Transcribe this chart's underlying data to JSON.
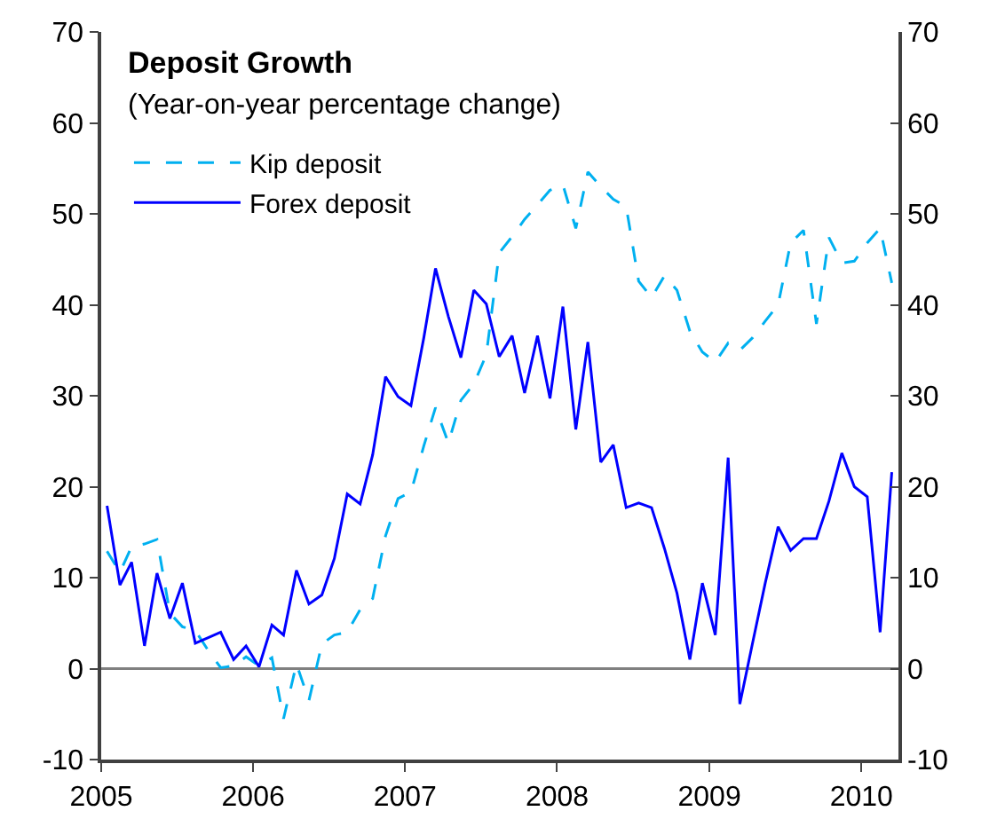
{
  "chart_data": {
    "type": "line",
    "title": "Deposit Growth",
    "subtitle": "(Year-on-year percentage change)",
    "x": [
      "2005-01-15",
      "2005-02-15",
      "2005-03-15",
      "2005-04-15",
      "2005-05-15",
      "2005-06-15",
      "2005-07-15",
      "2005-08-15",
      "2005-09-15",
      "2005-10-15",
      "2005-11-15",
      "2005-12-15",
      "2006-01-15",
      "2006-02-15",
      "2006-03-15",
      "2006-04-15",
      "2006-05-15",
      "2006-06-15",
      "2006-07-15",
      "2006-08-15",
      "2006-09-15",
      "2006-10-15",
      "2006-11-15",
      "2006-12-15",
      "2007-01-15",
      "2007-02-15",
      "2007-03-15",
      "2007-04-15",
      "2007-05-15",
      "2007-06-15",
      "2007-07-15",
      "2007-08-15",
      "2007-09-15",
      "2007-10-15",
      "2007-11-15",
      "2007-12-15",
      "2008-01-15",
      "2008-02-15",
      "2008-03-15",
      "2008-04-15",
      "2008-05-15",
      "2008-06-15",
      "2008-07-15",
      "2008-08-15",
      "2008-09-15",
      "2008-10-15",
      "2008-11-15",
      "2008-12-15",
      "2009-01-15",
      "2009-02-15",
      "2009-03-15",
      "2009-04-15",
      "2009-05-15",
      "2009-06-15",
      "2009-07-15",
      "2009-08-15",
      "2009-09-15",
      "2009-10-15",
      "2009-11-15",
      "2009-12-15",
      "2010-01-15",
      "2010-02-15",
      "2010-03-15"
    ],
    "series": [
      {
        "name": "Kip deposit",
        "color": "#00b0f0",
        "line_style": "dashed",
        "values": [
          12.9,
          10.6,
          13.4,
          13.7,
          14.2,
          6.1,
          4.6,
          4.2,
          2.0,
          0.1,
          0.3,
          1.3,
          0.3,
          1.2,
          -5.5,
          0.5,
          -3.5,
          2.7,
          3.7,
          4.0,
          6.5,
          7.7,
          14.6,
          18.7,
          19.4,
          24.5,
          28.7,
          24.8,
          29.5,
          31.3,
          34.5,
          45.7,
          47.5,
          49.4,
          51.0,
          52.6,
          53.2,
          48.4,
          54.6,
          53.0,
          51.6,
          50.8,
          42.6,
          40.8,
          43.2,
          41.6,
          37.1,
          34.8,
          33.7,
          35.8,
          35.0,
          36.4,
          38.2,
          40.0,
          46.8,
          48.2,
          37.9,
          47.4,
          44.6,
          44.8,
          46.8,
          48.4,
          42.4
        ]
      },
      {
        "name": "Forex deposit",
        "color": "#0000ff",
        "line_style": "solid",
        "values": [
          17.9,
          9.2,
          11.7,
          2.5,
          10.5,
          5.5,
          9.4,
          2.8,
          3.4,
          4.0,
          1.0,
          2.5,
          0.2,
          4.8,
          3.7,
          10.8,
          7.1,
          8.1,
          12.1,
          19.2,
          18.1,
          23.5,
          32.1,
          29.9,
          28.9,
          36.4,
          44.0,
          38.7,
          34.2,
          41.6,
          40.1,
          34.3,
          36.6,
          30.3,
          36.6,
          29.7,
          39.8,
          26.3,
          35.9,
          22.7,
          24.6,
          17.7,
          18.2,
          17.7,
          13.2,
          8.3,
          1.0,
          9.4,
          3.7,
          23.2,
          -3.9,
          2.9,
          9.4,
          15.6,
          13.0,
          14.3,
          14.3,
          18.4,
          23.7,
          20.0,
          18.9,
          4.0,
          21.6
        ]
      }
    ],
    "xlim": [
      "2005-01-01",
      "2010-03-31"
    ],
    "xticks": [
      {
        "value": "2005-01-01",
        "label": "2005"
      },
      {
        "value": "2006-01-01",
        "label": "2006"
      },
      {
        "value": "2007-01-01",
        "label": "2007"
      },
      {
        "value": "2008-01-01",
        "label": "2008"
      },
      {
        "value": "2009-01-01",
        "label": "2009"
      },
      {
        "value": "2010-01-01",
        "label": "2010"
      }
    ],
    "ylim": [
      -10,
      70
    ],
    "yticks": [
      -10,
      0,
      10,
      20,
      30,
      40,
      50,
      60,
      70
    ],
    "y2lim": [
      -10,
      70
    ],
    "y2ticks": [
      -10,
      0,
      10,
      20,
      30,
      40,
      50,
      60,
      70
    ],
    "ref_lines": [
      {
        "axis": "y",
        "value": 0,
        "color": "#808080",
        "line_style": "solid"
      }
    ],
    "grid": false,
    "legend": "top left",
    "marker": "none"
  }
}
